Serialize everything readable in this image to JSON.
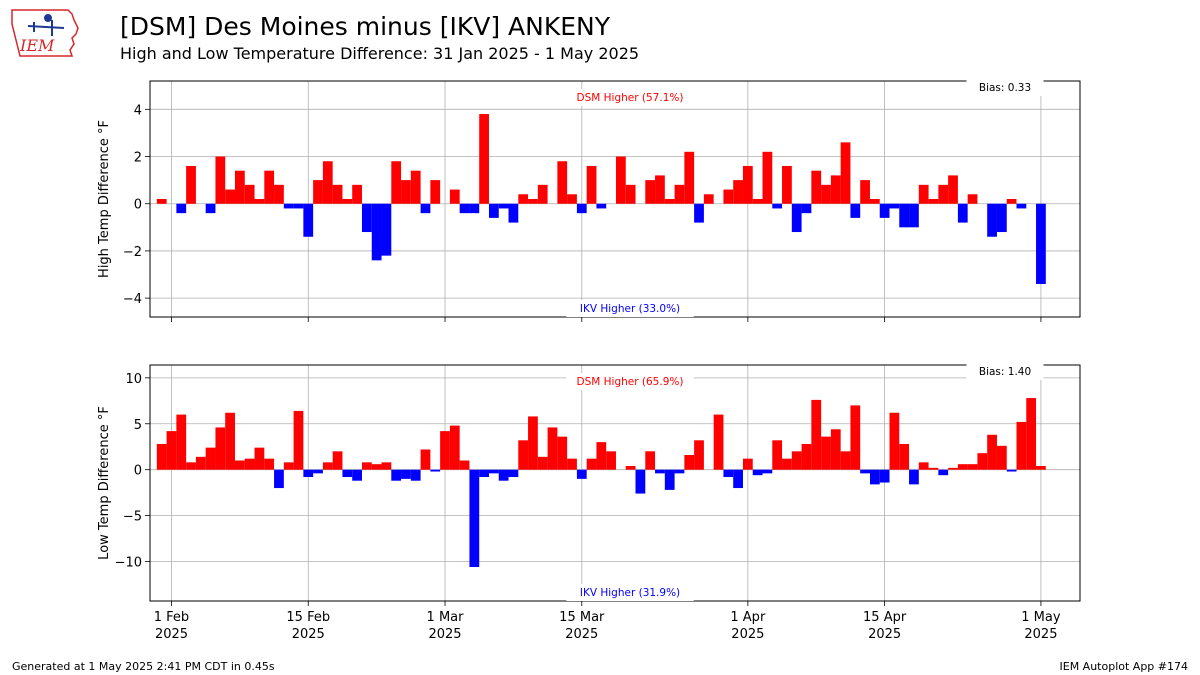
{
  "header": {
    "title": "[DSM] Des Moines minus [IKV] ANKENY",
    "subtitle": "High and Low Temperature Difference: 31 Jan 2025 - 1 May 2025",
    "logo_text": "IEM"
  },
  "footer": {
    "left": "Generated at 1 May 2025 2:41 PM CDT in 0.45s",
    "right": "IEM Autoplot App #174"
  },
  "colors": {
    "positive": "#ff0000",
    "negative": "#0000ff",
    "grid": "#b0b0b0",
    "logo": "#d62728"
  },
  "chart_data": [
    {
      "type": "bar",
      "ylabel": "High Temp Difference $^\\circ$F",
      "ylabel_display": "High Temp Difference °F",
      "ylim": [
        -4.8,
        5.2
      ],
      "yticks": [
        -4,
        -2,
        0,
        2,
        4
      ],
      "grid": true,
      "start_date": "2025-01-31",
      "end_date": "2025-05-01",
      "positive_label": "DSM Higher (57.1%)",
      "negative_label": "IKV Higher (33.0%)",
      "bias_label": "Bias: 0.33",
      "values": [
        0.2,
        0,
        -0.4,
        1.6,
        0,
        -0.4,
        2.0,
        0.6,
        1.4,
        0.8,
        0.2,
        1.4,
        0.8,
        -0.2,
        -0.2,
        -1.4,
        1.0,
        1.8,
        0.8,
        0.2,
        0.8,
        -1.2,
        -2.4,
        -2.2,
        1.8,
        1.0,
        1.4,
        -0.4,
        1.0,
        0,
        0.6,
        -0.4,
        -0.4,
        3.8,
        -0.6,
        -0.2,
        -0.8,
        0.4,
        0.2,
        0.8,
        0,
        1.8,
        0.4,
        -0.4,
        1.6,
        -0.2,
        0,
        2.0,
        0.8,
        0,
        1.0,
        1.2,
        0.2,
        0.8,
        2.2,
        -0.8,
        0.4,
        0,
        0.6,
        1.0,
        1.6,
        0.2,
        2.2,
        -0.2,
        1.6,
        -1.2,
        -0.4,
        1.4,
        0.8,
        1.2,
        2.6,
        -0.6,
        1.0,
        0.2,
        -0.6,
        -0.2,
        -1.0,
        -1.0,
        0.8,
        0.2,
        0.8,
        1.2,
        -0.8,
        0.4,
        0,
        -1.4,
        -1.2,
        0.2,
        -0.2,
        0,
        -3.4
      ]
    },
    {
      "type": "bar",
      "ylabel": "Low Temp Difference $^\\circ$F",
      "ylabel_display": "Low Temp Difference °F",
      "ylim": [
        -14.3,
        11.4
      ],
      "yticks": [
        -10,
        -5,
        0,
        5,
        10
      ],
      "grid": true,
      "start_date": "2025-01-31",
      "end_date": "2025-05-01",
      "positive_label": "DSM Higher (65.9%)",
      "negative_label": "IKV Higher (31.9%)",
      "bias_label": "Bias: 1.40",
      "values": [
        2.8,
        4.2,
        6.0,
        0.8,
        1.4,
        2.4,
        4.6,
        6.2,
        1.0,
        1.2,
        2.4,
        1.2,
        -2.0,
        0.8,
        6.4,
        -0.8,
        -0.4,
        0.8,
        2.0,
        -0.8,
        -1.2,
        0.8,
        0.6,
        0.8,
        -1.2,
        -1.0,
        -1.2,
        2.2,
        -0.2,
        4.2,
        4.8,
        1.0,
        -10.6,
        -0.8,
        -0.4,
        -1.2,
        -0.8,
        3.2,
        5.8,
        1.4,
        4.6,
        3.6,
        1.2,
        -1.0,
        1.2,
        3.0,
        2.0,
        0,
        0.4,
        -2.6,
        2.0,
        -0.4,
        -2.2,
        -0.4,
        1.6,
        3.2,
        0,
        6.0,
        -0.8,
        -2.0,
        1.2,
        -0.6,
        -0.4,
        3.2,
        1.2,
        2.0,
        2.8,
        7.6,
        3.6,
        4.4,
        2.0,
        7.0,
        -0.4,
        -1.6,
        -1.4,
        6.2,
        2.8,
        -1.6,
        0.8,
        0.2,
        -0.6,
        0.2,
        0.6,
        0.6,
        1.8,
        3.8,
        2.6,
        -0.2,
        5.2,
        7.8,
        0.4
      ]
    }
  ],
  "xticks": [
    {
      "date": "2025-02-01",
      "line1": "1 Feb",
      "line2": "2025"
    },
    {
      "date": "2025-02-15",
      "line1": "15 Feb",
      "line2": "2025"
    },
    {
      "date": "2025-03-01",
      "line1": "1 Mar",
      "line2": "2025"
    },
    {
      "date": "2025-03-15",
      "line1": "15 Mar",
      "line2": "2025"
    },
    {
      "date": "2025-04-01",
      "line1": "1 Apr",
      "line2": "2025"
    },
    {
      "date": "2025-04-15",
      "line1": "15 Apr",
      "line2": "2025"
    },
    {
      "date": "2025-05-01",
      "line1": "1 May",
      "line2": "2025"
    }
  ]
}
